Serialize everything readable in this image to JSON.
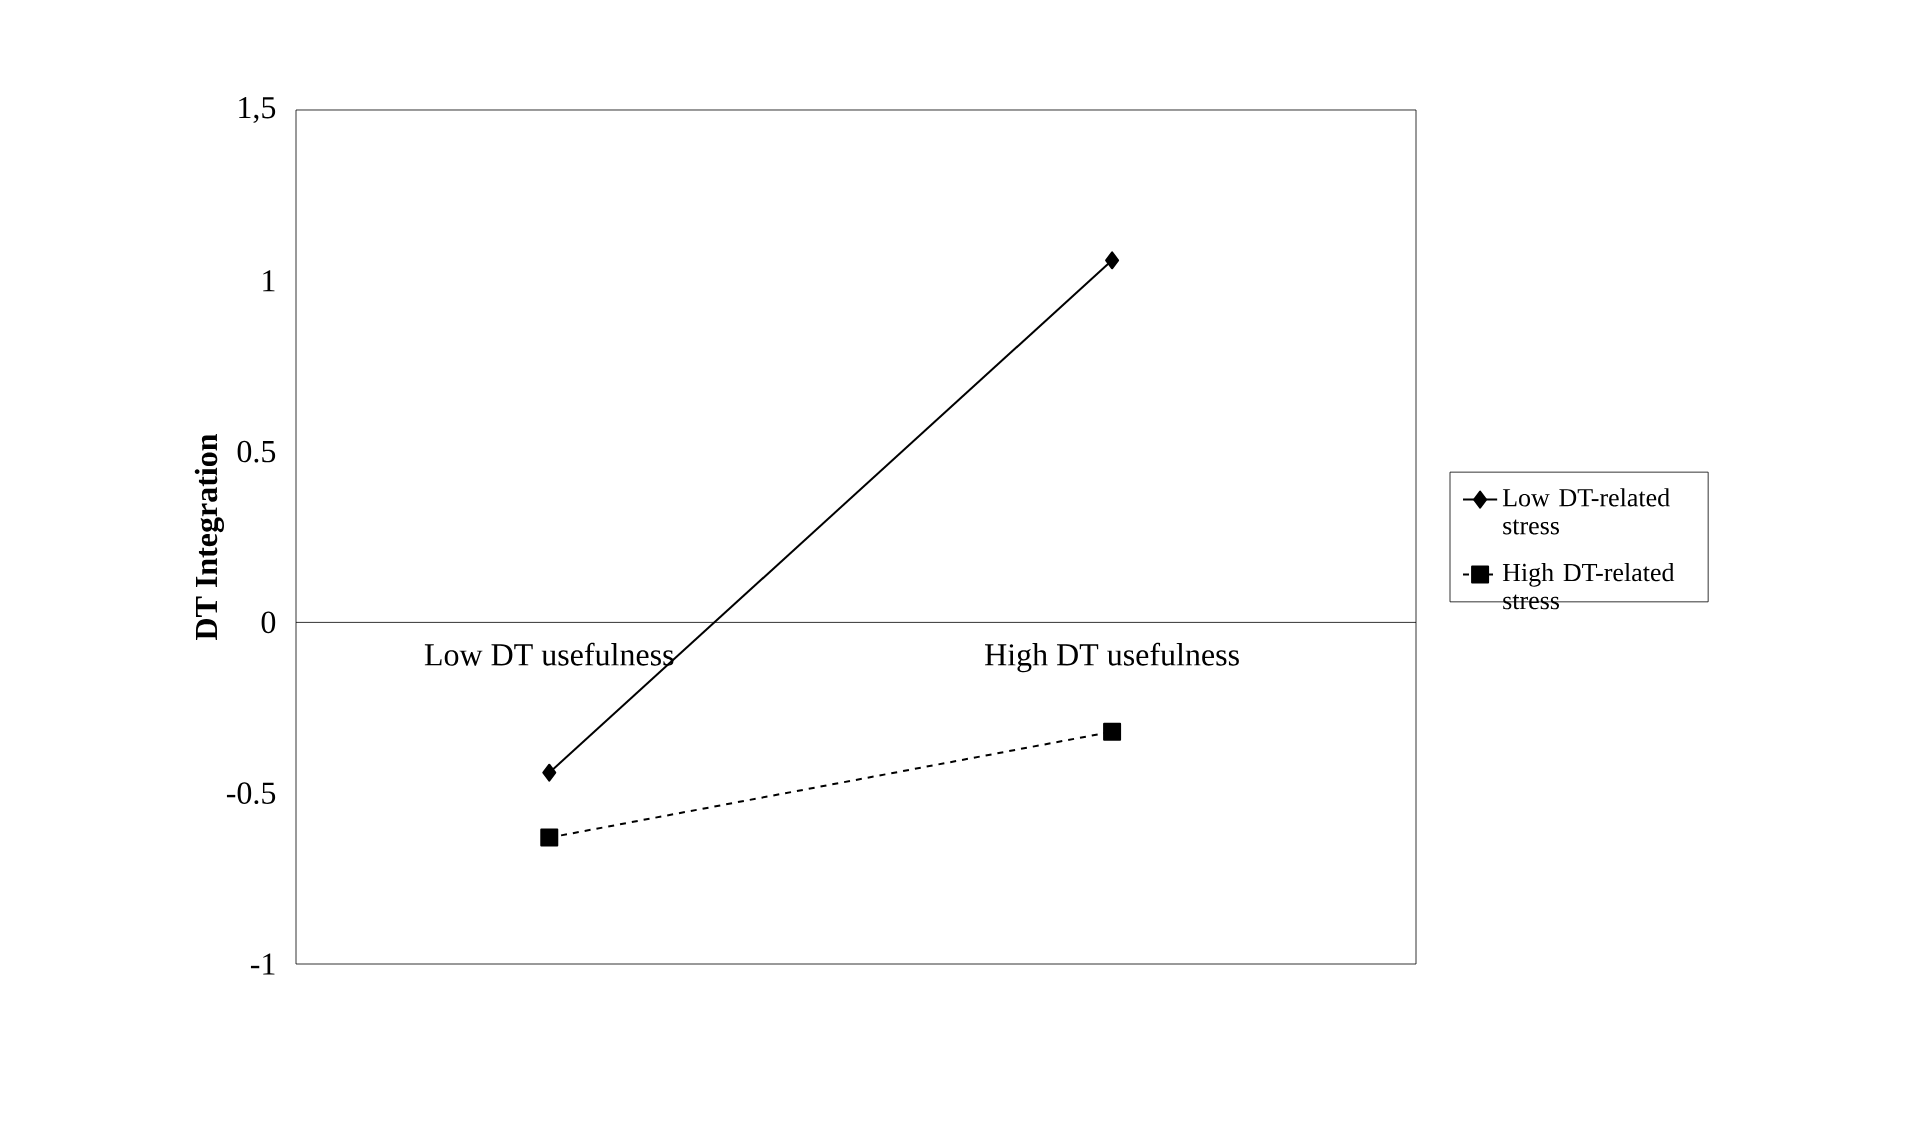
{
  "chart_data": {
    "type": "line",
    "ylabel": "DT Integration",
    "categories": [
      "Low DT usefulness",
      "High DT usefulness"
    ],
    "series": [
      {
        "name": "Low DT-related stress",
        "color": "#000000",
        "values": [
          -0.44,
          1.06
        ],
        "marker": "diamond",
        "line_style": "solid"
      },
      {
        "name": "High DT-related stress",
        "color": "#000000",
        "values": [
          -0.63,
          -0.32
        ],
        "marker": "square",
        "line_style": "dashed"
      }
    ],
    "ylim": [
      -1,
      1.5
    ],
    "yticks": [
      -1,
      -0.5,
      0,
      0.5,
      1,
      {
        "value": 1.5,
        "label": "1,5"
      }
    ],
    "legend": "right",
    "grid": false
  }
}
